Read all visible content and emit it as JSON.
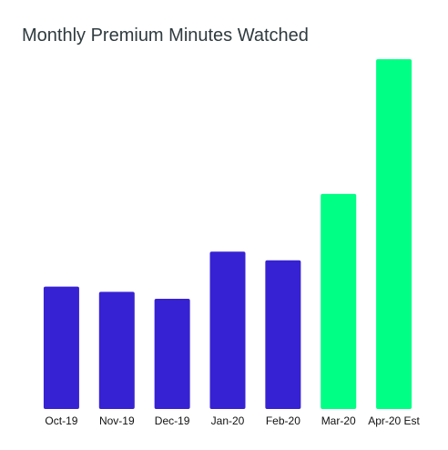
{
  "chart_data": {
    "type": "bar",
    "title": "Monthly Premium Minutes Watched",
    "xlabel": "",
    "ylabel": "",
    "categories": [
      "Oct-19",
      "Nov-19",
      "Dec-19",
      "Jan-20",
      "Feb-20",
      "Mar-20",
      "Apr-20 Est"
    ],
    "values": [
      35,
      33.5,
      31.5,
      45,
      42.5,
      61.5,
      100
    ],
    "ylim": [
      0,
      100
    ],
    "y_axis_visible": false,
    "grid": false,
    "legend": "none",
    "colors": {
      "actual": "#3722d3",
      "elevated": "#00ff85"
    },
    "bar_colors": [
      "#3722d3",
      "#3722d3",
      "#3722d3",
      "#3722d3",
      "#3722d3",
      "#00ff85",
      "#00ff85"
    ]
  }
}
